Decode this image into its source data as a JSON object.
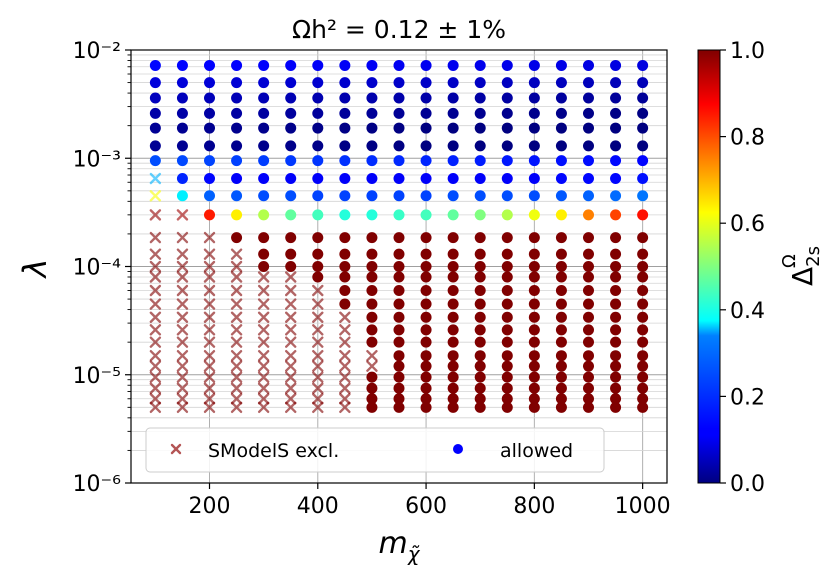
{
  "chart_data": {
    "type": "scatter",
    "title": "Ωh² = 0.12 ± 1%",
    "xlabel": "m_χ̃",
    "ylabel": "λ",
    "xscale": "linear",
    "yscale": "log",
    "xlim": [
      55,
      1045
    ],
    "ylim": [
      1e-06,
      0.01
    ],
    "xticks": [
      200,
      400,
      600,
      800,
      1000
    ],
    "xtick_labels": [
      "200",
      "400",
      "600",
      "800",
      "1000"
    ],
    "yticks": [
      1e-06,
      1e-05,
      0.0001,
      0.001,
      0.01
    ],
    "ytick_labels": [
      "10⁻⁶",
      "10⁻⁵",
      "10⁻⁴",
      "10⁻³",
      "10⁻²"
    ],
    "grid": true,
    "colormap": "jet",
    "colorbar": {
      "label": "Δ_2s^Ω",
      "range": [
        0.0,
        1.0
      ],
      "ticks": [
        "0.0",
        "0.2",
        "0.4",
        "0.6",
        "0.8",
        "1.0"
      ]
    },
    "legend": {
      "placement": "lower-center",
      "entries": [
        {
          "label": "SModelS excl.",
          "marker": "x",
          "color": "#b45555"
        },
        {
          "label": "allowed",
          "marker": "o",
          "color": "#0000ff"
        }
      ]
    },
    "x_values": [
      100,
      150,
      200,
      250,
      300,
      350,
      400,
      450,
      500,
      550,
      600,
      650,
      700,
      750,
      800,
      850,
      900,
      950,
      1000
    ],
    "lambda_values": [
      5e-06,
      6e-06,
      7.5e-06,
      9.5e-06,
      1.2e-05,
      1.5e-05,
      2e-05,
      2.6e-05,
      3.4e-05,
      4.5e-05,
      6e-05,
      8e-05,
      0.0001,
      0.00013,
      0.000185,
      0.0003,
      0.00045,
      0.00065,
      0.00095,
      0.0013,
      0.0019,
      0.0026,
      0.0036,
      0.005,
      0.0072
    ],
    "upper_rows_delta": [
      0.17,
      0.13,
      0.09,
      0.06,
      0.04,
      0.02,
      0.02,
      0.01
    ],
    "transition_row": {
      "lambda": 0.0003,
      "delta": [
        0.98,
        0.97,
        0.85,
        0.64,
        0.55,
        0.47,
        0.44,
        0.41,
        0.41,
        0.43,
        0.44,
        0.47,
        0.5,
        0.55,
        0.61,
        0.64,
        0.75,
        0.81,
        0.86
      ],
      "excluded_x": [
        100,
        150
      ]
    },
    "row_045": {
      "lambda": 0.00045,
      "delta": [
        0.62,
        0.36,
        0.22,
        0.21,
        0.2,
        0.2,
        0.19,
        0.19,
        0.19,
        0.19,
        0.19,
        0.2,
        0.2,
        0.2,
        0.2,
        0.21,
        0.22,
        0.23,
        0.24
      ],
      "excluded_x": [
        100
      ]
    },
    "row_065": {
      "lambda": 0.00065,
      "delta": [
        0.3,
        0.16,
        0.13,
        0.12,
        0.12,
        0.12,
        0.12,
        0.12,
        0.12,
        0.12,
        0.12,
        0.12,
        0.12,
        0.12,
        0.12,
        0.13,
        0.13,
        0.13,
        0.14
      ],
      "excluded_x": [
        100
      ]
    },
    "lower_rows_delta": 1.0,
    "excluded_upper_x_by_lambda": [
      {
        "lambda": 0.00013,
        "max_excluded_x": 250
      },
      {
        "lambda": 0.0001,
        "max_excluded_x": 250
      },
      {
        "lambda": 8e-05,
        "max_excluded_x": 350
      },
      {
        "lambda": 6e-05,
        "max_excluded_x": 400
      },
      {
        "lambda": 4.5e-05,
        "max_excluded_x": 400
      },
      {
        "lambda": 3.4e-05,
        "max_excluded_x": 450
      },
      {
        "lambda": 2.6e-05,
        "max_excluded_x": 450
      },
      {
        "lambda": 2e-05,
        "max_excluded_x": 450
      },
      {
        "lambda": 1.5e-05,
        "max_excluded_x": 500
      },
      {
        "lambda": 1.2e-05,
        "max_excluded_x": 500
      },
      {
        "lambda": 9.5e-06,
        "max_excluded_x": 450
      },
      {
        "lambda": 7.5e-06,
        "max_excluded_x": 450
      },
      {
        "lambda": 6e-06,
        "max_excluded_x": 450
      },
      {
        "lambda": 5e-06,
        "max_excluded_x": 450
      }
    ],
    "lambda_0185_excluded_max_x": 200
  }
}
